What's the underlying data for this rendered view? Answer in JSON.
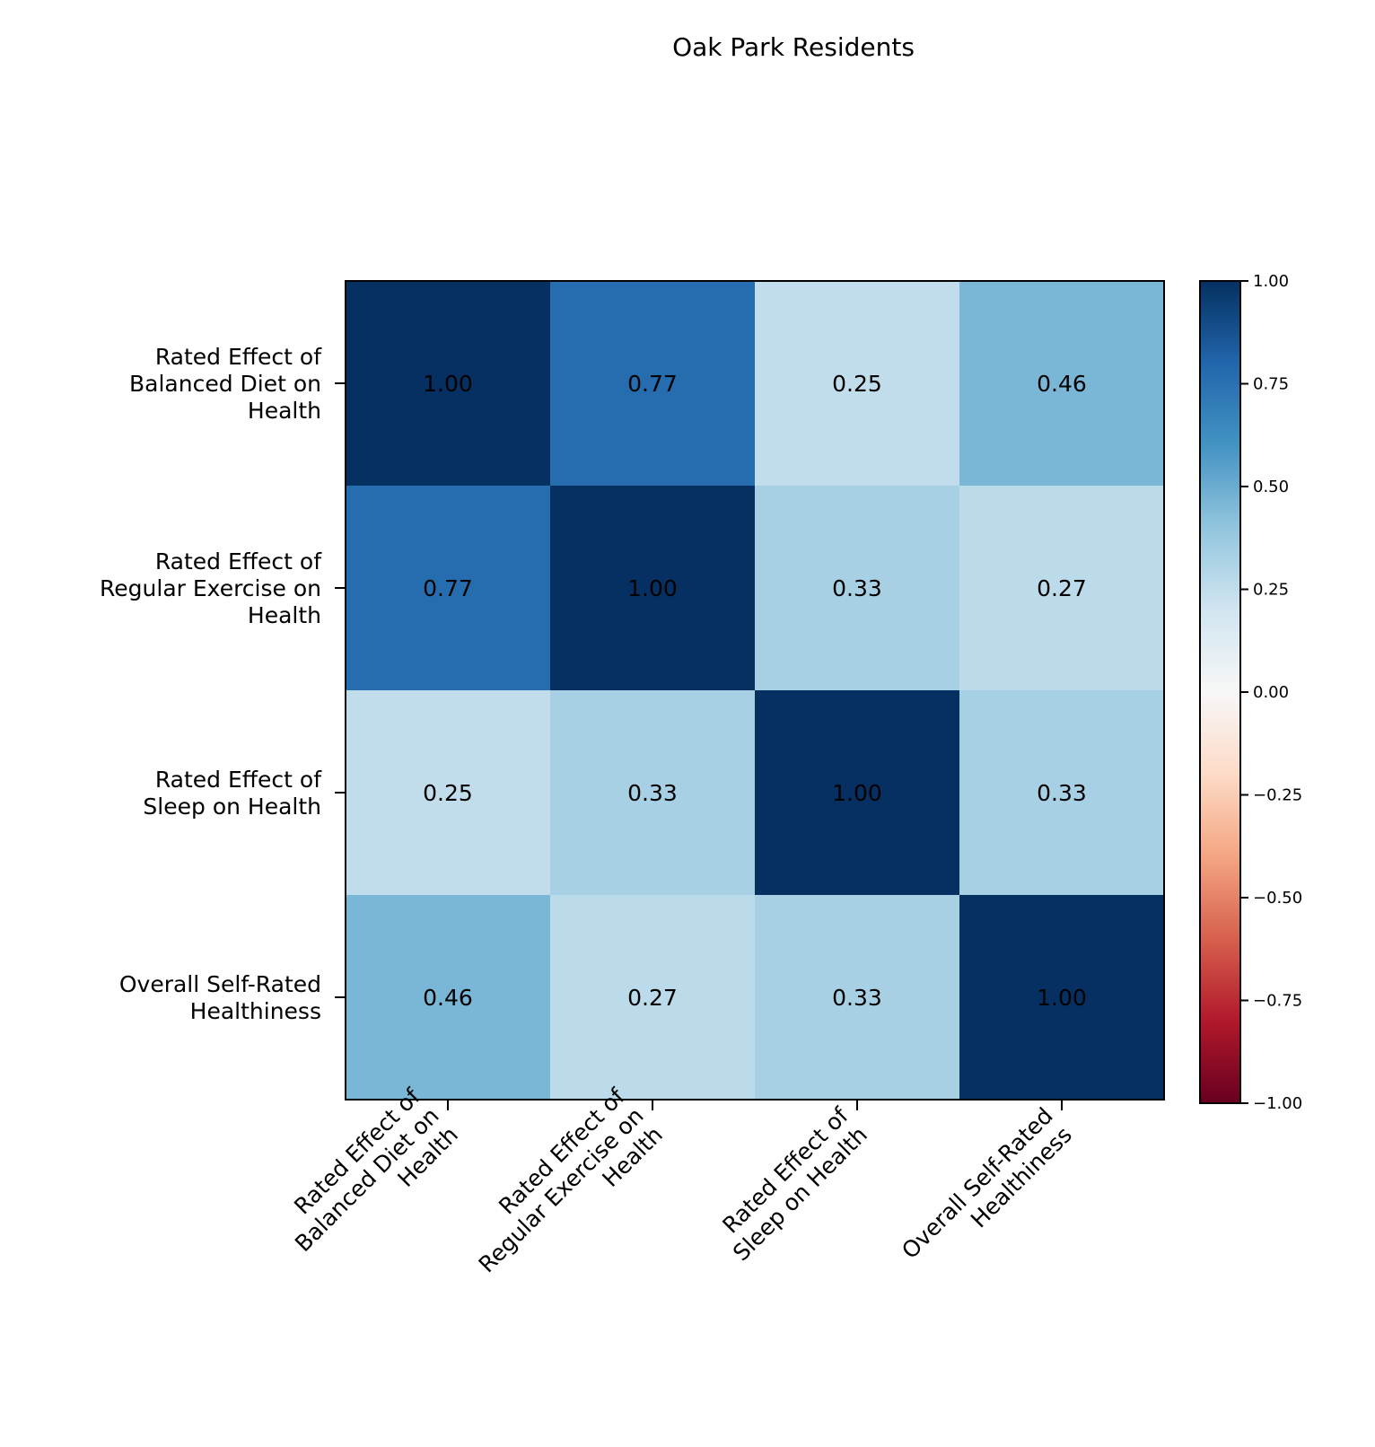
{
  "chart_data": {
    "type": "heatmap",
    "title": "Oak Park Residents",
    "xlabel": "",
    "ylabel": "",
    "row_labels": [
      [
        "Rated Effect of",
        "Balanced Diet on",
        "Health"
      ],
      [
        "Rated Effect of",
        "Regular Exercise on",
        "Health"
      ],
      [
        "Rated Effect of",
        "Sleep on Health"
      ],
      [
        "Overall Self-Rated",
        "Healthiness"
      ]
    ],
    "col_labels": [
      [
        "Rated Effect of",
        "Balanced Diet on",
        "Health"
      ],
      [
        "Rated Effect of",
        "Regular Exercise on",
        "Health"
      ],
      [
        "Rated Effect of",
        "Sleep on Health"
      ],
      [
        "Overall Self-Rated",
        "Healthiness"
      ]
    ],
    "values": [
      [
        1.0,
        0.77,
        0.25,
        0.46
      ],
      [
        0.77,
        1.0,
        0.33,
        0.27
      ],
      [
        0.25,
        0.33,
        1.0,
        0.33
      ],
      [
        0.46,
        0.27,
        0.33,
        1.0
      ]
    ],
    "cell_labels": [
      [
        "1.00",
        "0.77",
        "0.25",
        "0.46"
      ],
      [
        "0.77",
        "1.00",
        "0.33",
        "0.27"
      ],
      [
        "0.25",
        "0.33",
        "1.00",
        "0.33"
      ],
      [
        "0.46",
        "0.27",
        "0.33",
        "1.00"
      ]
    ],
    "colormap": "RdBu",
    "vmin": -1,
    "vmax": 1,
    "colorbar_ticks": [
      1.0,
      0.75,
      0.5,
      0.25,
      0.0,
      -0.25,
      -0.5,
      -0.75,
      -1.0
    ],
    "colorbar_tick_labels": [
      "1.00",
      "0.75",
      "0.50",
      "0.25",
      "0.00",
      "−0.25",
      "−0.50",
      "−0.75",
      "−1.00"
    ],
    "colorbar_placement": "right"
  }
}
